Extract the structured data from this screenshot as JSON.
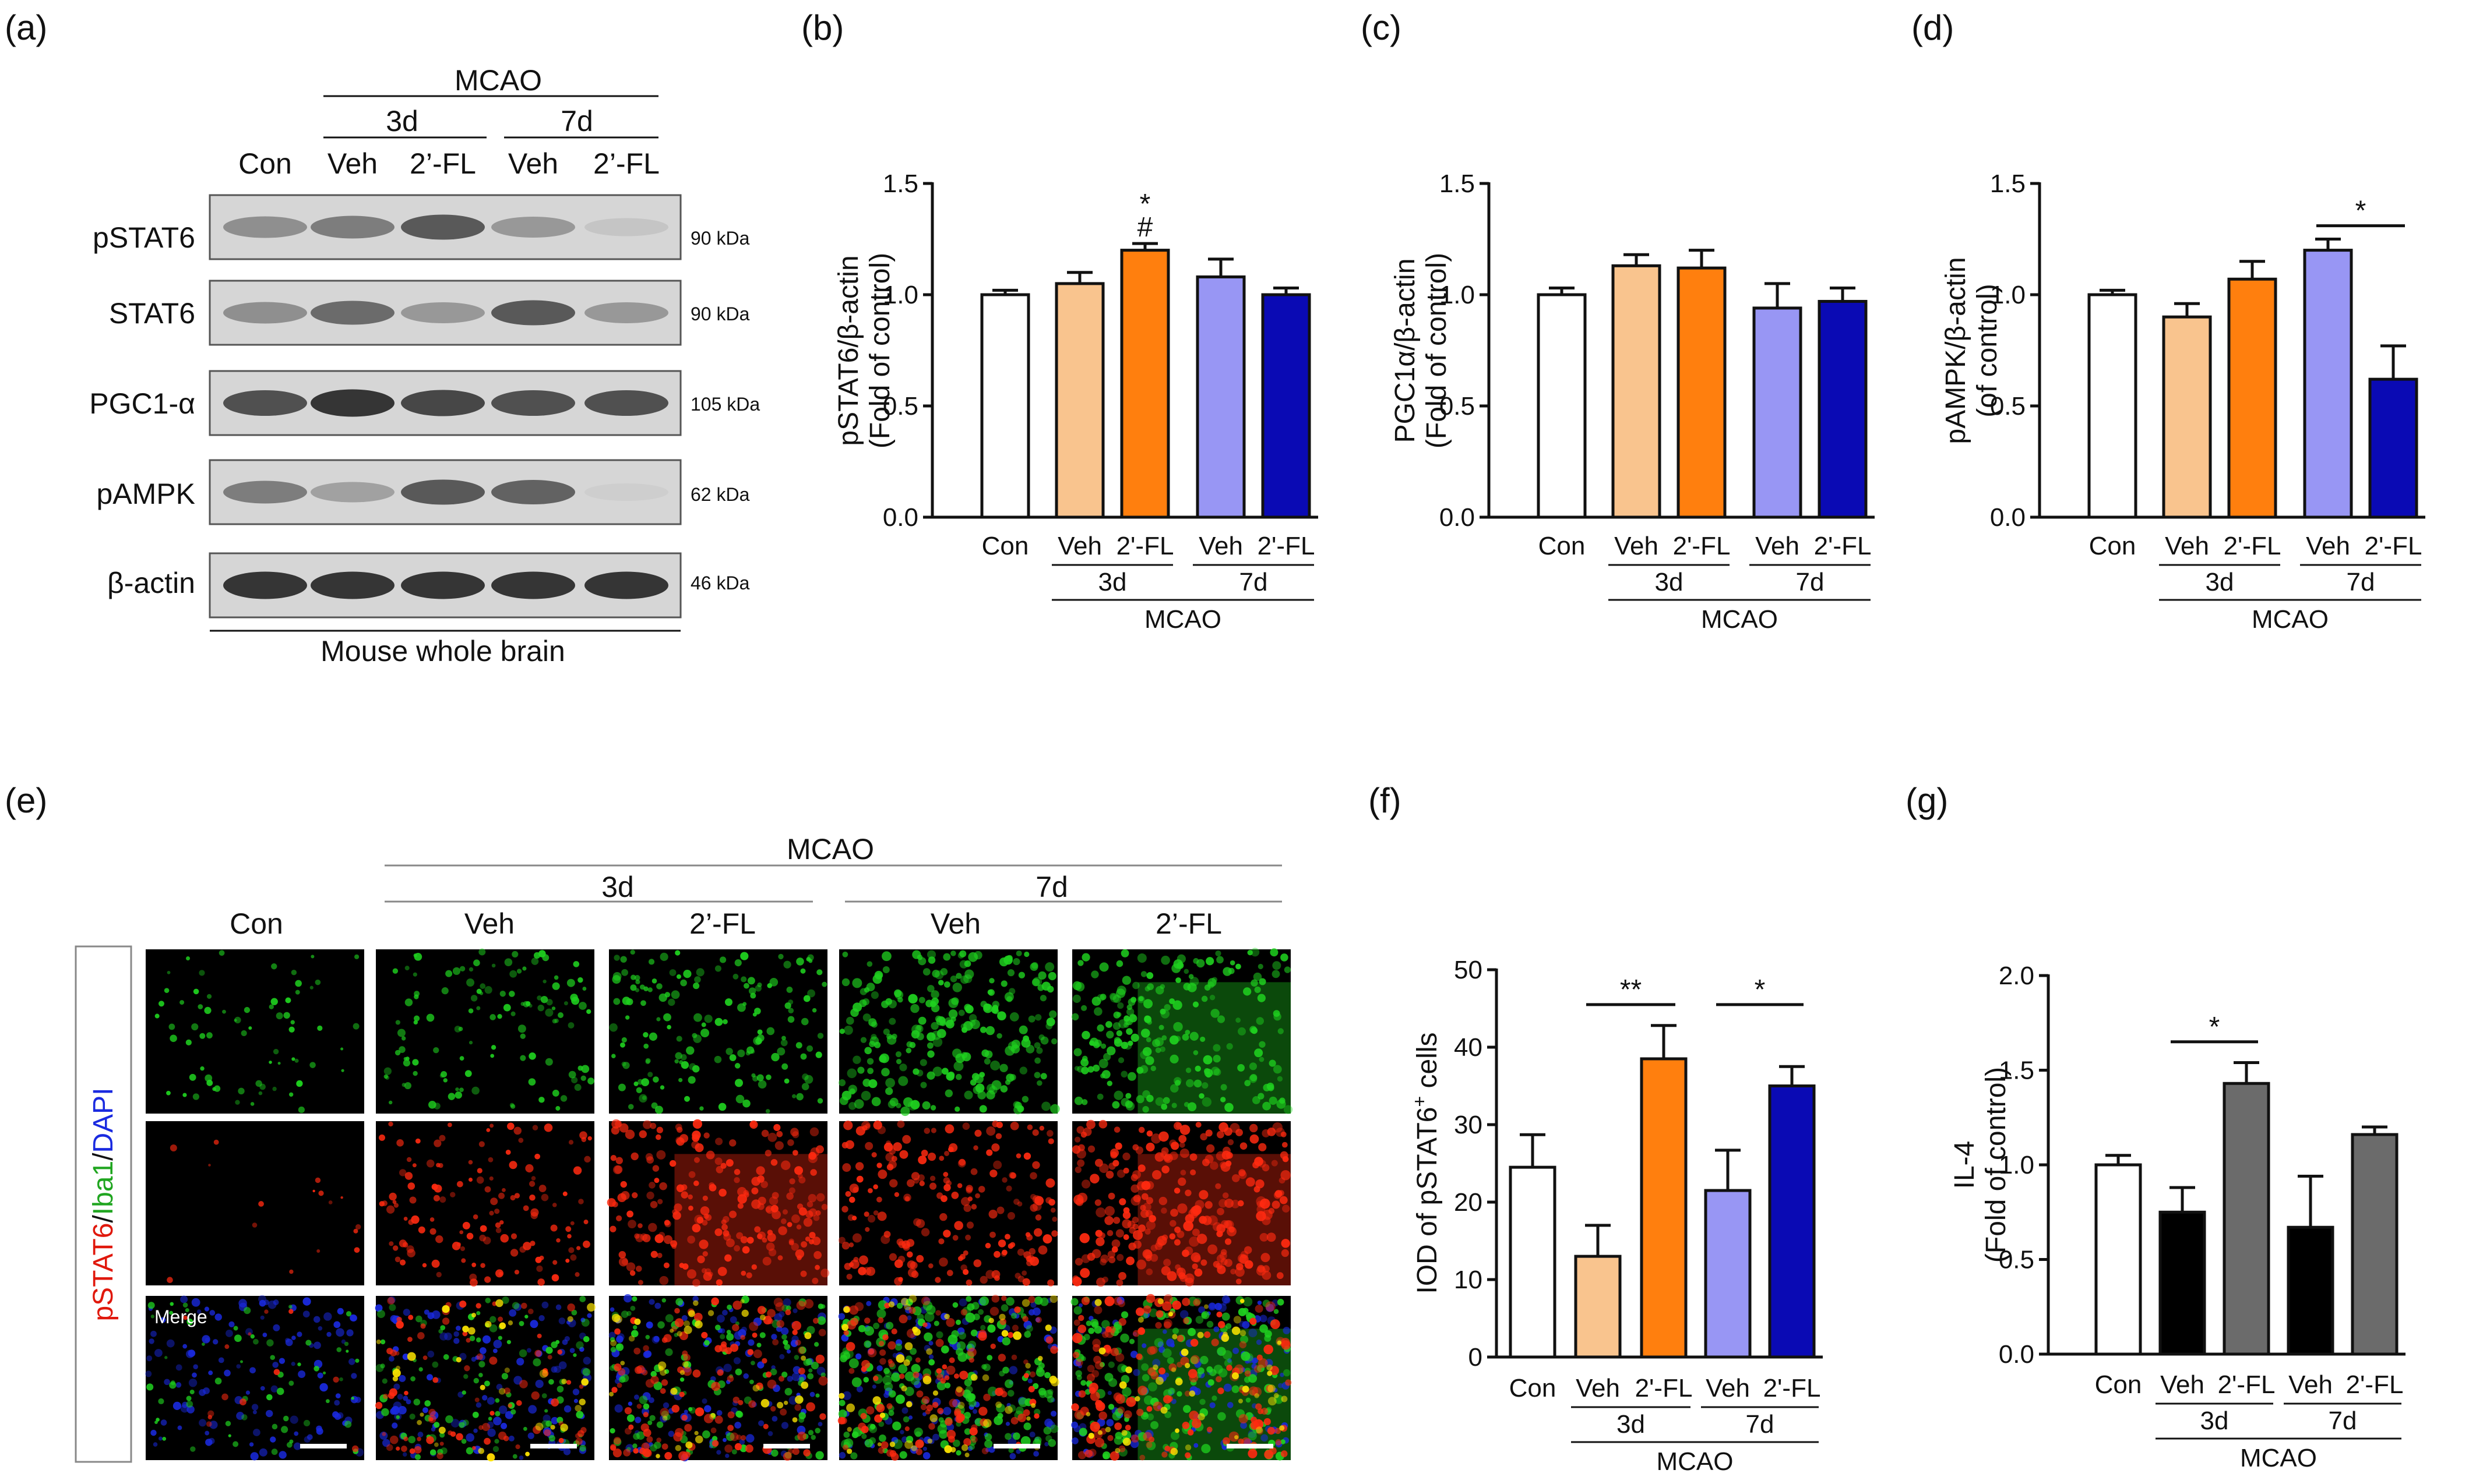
{
  "panel_labels": {
    "a": "(a)",
    "b": "(b)",
    "c": "(c)",
    "d": "(d)",
    "e": "(e)",
    "f": "(f)",
    "g": "(g)"
  },
  "blot": {
    "mcao": "MCAO",
    "d3": "3d",
    "d7": "7d",
    "lanes": [
      "Con",
      "Veh",
      "2’-FL",
      "Veh",
      "2’-FL"
    ],
    "rows": [
      {
        "label": "pSTAT6",
        "kda": "90 kDa",
        "intensity": [
          0.45,
          0.55,
          0.75,
          0.4,
          0.15
        ]
      },
      {
        "label": "STAT6",
        "kda": "90 kDa",
        "intensity": [
          0.45,
          0.65,
          0.4,
          0.75,
          0.4
        ]
      },
      {
        "label": "PGC1-α",
        "kda": "105 kDa",
        "intensity": [
          0.8,
          0.95,
          0.85,
          0.8,
          0.8
        ]
      },
      {
        "label": "pAMPK",
        "kda": "62 kDa",
        "intensity": [
          0.55,
          0.35,
          0.75,
          0.7,
          0.1
        ]
      },
      {
        "label": "β-actin",
        "kda": "46 kDa",
        "intensity": [
          0.95,
          0.95,
          0.95,
          0.95,
          0.95
        ]
      }
    ],
    "footer": "Mouse whole brain"
  },
  "colors": {
    "con": "#ffffff",
    "veh3": "#f9c48e",
    "fl3": "#ff7f0e",
    "veh7": "#9896f4",
    "fl7": "#0a0ab4",
    "g_veh": "#000000",
    "g_fl": "#6b6b6b",
    "green": "#1fd11f",
    "red": "#ff2a10",
    "blue": "#1a2ae0"
  },
  "chart_data": [
    {
      "type": "bar",
      "panel": "b",
      "categories": [
        "Con",
        "Veh",
        "2'-FL",
        "Veh",
        "2'-FL"
      ],
      "values": [
        1.0,
        1.05,
        1.2,
        1.08,
        1.0
      ],
      "errors": [
        0.02,
        0.05,
        0.03,
        0.08,
        0.03
      ],
      "ylabel": [
        "pSTAT6/β-actin",
        "(Fold of control)"
      ],
      "ylim": [
        0,
        1.5
      ],
      "yticks": [
        "0.0",
        "0.5",
        "1.0",
        "1.5"
      ],
      "groups": [
        "3d",
        "7d"
      ],
      "mcao": "MCAO",
      "annotations": [
        {
          "bar": 2,
          "text": "*"
        },
        {
          "bar": 2,
          "text": "#"
        }
      ],
      "brackets": []
    },
    {
      "type": "bar",
      "panel": "c",
      "categories": [
        "Con",
        "Veh",
        "2'-FL",
        "Veh",
        "2'-FL"
      ],
      "values": [
        1.0,
        1.13,
        1.12,
        0.94,
        0.97
      ],
      "errors": [
        0.03,
        0.05,
        0.08,
        0.11,
        0.06
      ],
      "ylabel": [
        "PGC1α/β-actin",
        "(Fold of control)"
      ],
      "ylim": [
        0,
        1.5
      ],
      "yticks": [
        "0.0",
        "0.5",
        "1.0",
        "1.5"
      ],
      "groups": [
        "3d",
        "7d"
      ],
      "mcao": "MCAO",
      "annotations": [],
      "brackets": []
    },
    {
      "type": "bar",
      "panel": "d",
      "categories": [
        "Con",
        "Veh",
        "2'-FL",
        "Veh",
        "2'-FL"
      ],
      "values": [
        1.0,
        0.9,
        1.07,
        1.2,
        0.62
      ],
      "errors": [
        0.02,
        0.06,
        0.08,
        0.05,
        0.15
      ],
      "ylabel": [
        "pAMPK/β-actin",
        "(of control)"
      ],
      "ylim": [
        0,
        1.5
      ],
      "yticks": [
        "0.0",
        "0.5",
        "1.0",
        "1.5"
      ],
      "groups": [
        "3d",
        "7d"
      ],
      "mcao": "MCAO",
      "annotations": [],
      "brackets": [
        {
          "from": 3,
          "to": 4,
          "text": "*",
          "y": 1.31
        }
      ]
    },
    {
      "type": "bar",
      "panel": "f",
      "categories": [
        "Con",
        "Veh",
        "2'-FL",
        "Veh",
        "2'-FL"
      ],
      "values": [
        24.5,
        13.0,
        38.5,
        21.5,
        35.0
      ],
      "errors": [
        4.2,
        4.0,
        4.3,
        5.2,
        2.5
      ],
      "ylabel": [
        "IOD of pSTAT6",
        "+",
        " cells"
      ],
      "ylim": [
        0,
        50
      ],
      "yticks": [
        "0",
        "10",
        "20",
        "30",
        "40",
        "50"
      ],
      "groups": [
        "3d",
        "7d"
      ],
      "mcao": "MCAO",
      "annotations": [],
      "brackets": [
        {
          "from": 1,
          "to": 2,
          "text": "**",
          "y": 45.5
        },
        {
          "from": 3,
          "to": 4,
          "text": "*",
          "y": 45.5
        }
      ]
    },
    {
      "type": "bar",
      "panel": "g",
      "categories": [
        "Con",
        "Veh",
        "2'-FL",
        "Veh",
        "2'-FL"
      ],
      "values": [
        1.0,
        0.75,
        1.43,
        0.67,
        1.16
      ],
      "errors": [
        0.05,
        0.13,
        0.11,
        0.27,
        0.04
      ],
      "ylabel": [
        "IL-4",
        "(Fold of control)"
      ],
      "ylim": [
        0,
        2.0
      ],
      "yticks": [
        "0.0",
        "0.5",
        "1.0",
        "1.5",
        "2.0"
      ],
      "groups": [
        "3d",
        "7d"
      ],
      "mcao": "MCAO",
      "annotations": [],
      "brackets": [
        {
          "from": 1,
          "to": 2,
          "text": "*",
          "y": 1.65
        }
      ]
    }
  ],
  "micro": {
    "mcao": "MCAO",
    "d3": "3d",
    "d7": "7d",
    "cols": [
      "Con",
      "Veh",
      "2’-FL",
      "Veh",
      "2’-FL"
    ],
    "side": [
      "pSTAT6",
      "/",
      "Iba1",
      "/",
      "DAPI"
    ],
    "merge": "Merge",
    "green_density": [
      0.15,
      0.35,
      0.5,
      0.85,
      0.75
    ],
    "red_density": [
      0.02,
      0.45,
      0.75,
      0.7,
      0.95
    ]
  }
}
